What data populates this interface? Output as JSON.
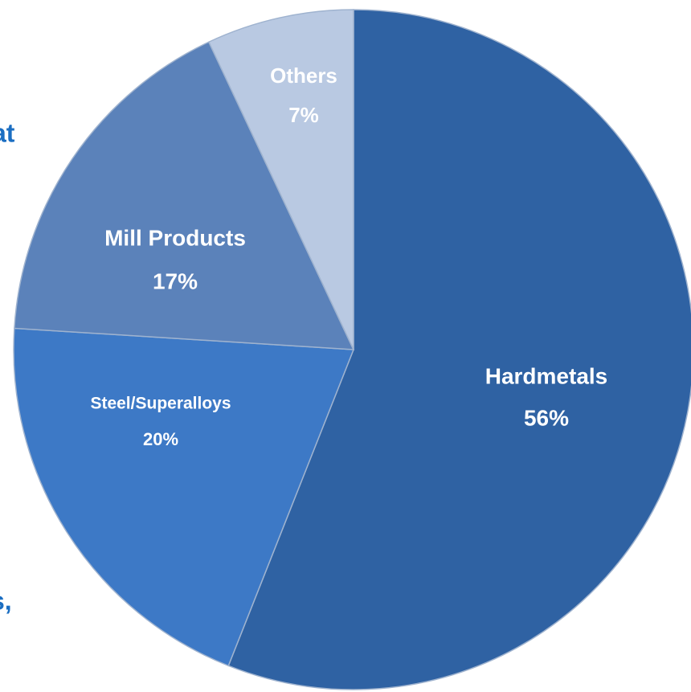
{
  "chart_data": {
    "type": "pie",
    "categories": [
      "Hardmetals",
      "Steel/Superalloys",
      "Mill Products",
      "Others"
    ],
    "values": [
      56,
      20,
      17,
      7
    ],
    "value_labels": [
      "56%",
      "20%",
      "17%",
      "7%"
    ],
    "colors": [
      "#2f62a3",
      "#3d79c6",
      "#5b82ba",
      "#b9c9e2"
    ],
    "start_angle": 0,
    "direction": "clockwise"
  },
  "cropped_text": [
    "at",
    "s,"
  ]
}
